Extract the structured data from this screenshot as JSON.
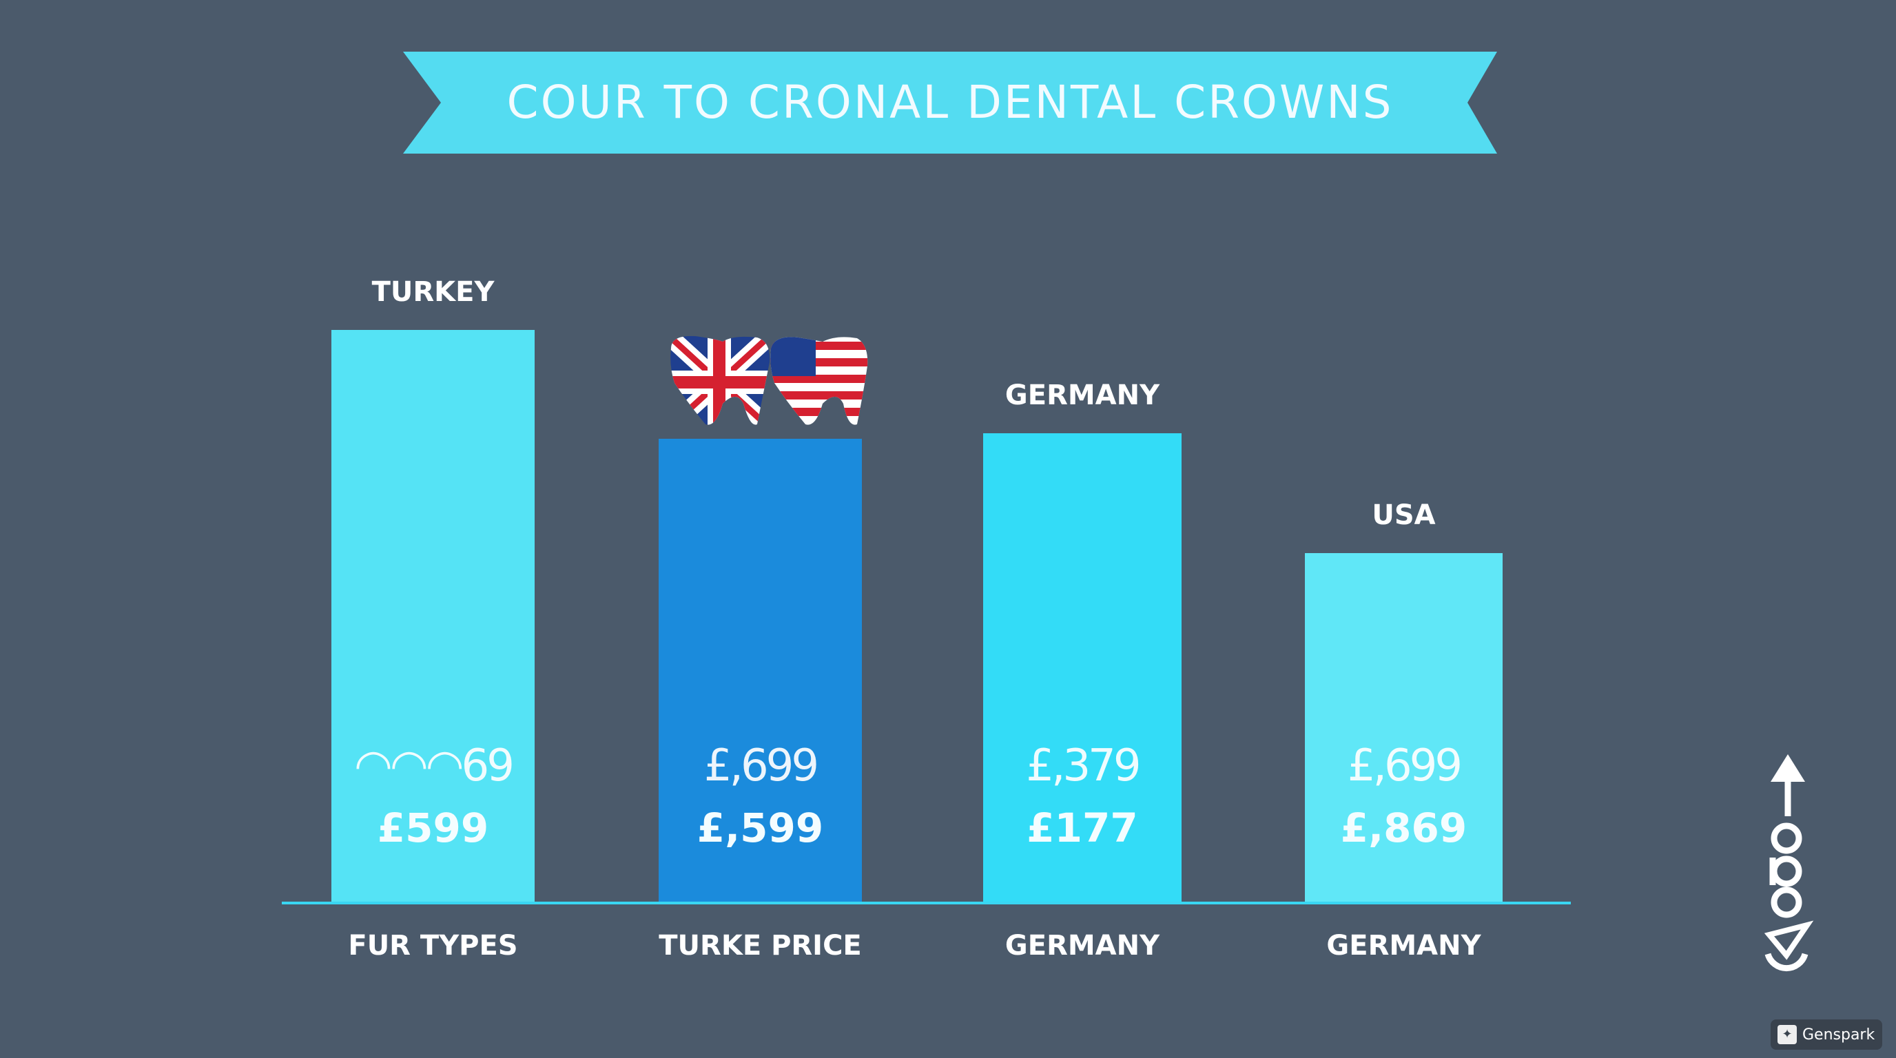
{
  "chart_data": {
    "type": "bar",
    "title": "COUR TO CRONAL DENTAL CROWNS",
    "categories": [
      "FUR TYPES",
      "TURKE PRICE",
      "GERMANY",
      "GERMANY"
    ],
    "bar_labels": [
      "TURKEY",
      "",
      "GERMANY",
      "USA"
    ],
    "values": [
      100,
      81,
      82,
      61
    ],
    "value_labels_upper": [
      "◠◠◠69",
      "£,699",
      "£,379",
      "£,699"
    ],
    "value_labels_lower": [
      "£599",
      "£,599",
      "£177",
      "£,869"
    ],
    "colors": [
      "#55e3f5",
      "#1b8bdc",
      "#33dcf7",
      "#60e7f7"
    ],
    "ylim": [
      0,
      100
    ],
    "grid": false,
    "legend": "none"
  },
  "decor": {
    "flags_icon": "uk-us-flag-teeth-icon",
    "side_logo": "opo-arrow-logo",
    "side_logo_text": "opo",
    "watermark": "Genspark"
  },
  "colors": {
    "background": "#4b5a6b",
    "banner": "#54dcf1",
    "axis": "#3ad6f2"
  }
}
